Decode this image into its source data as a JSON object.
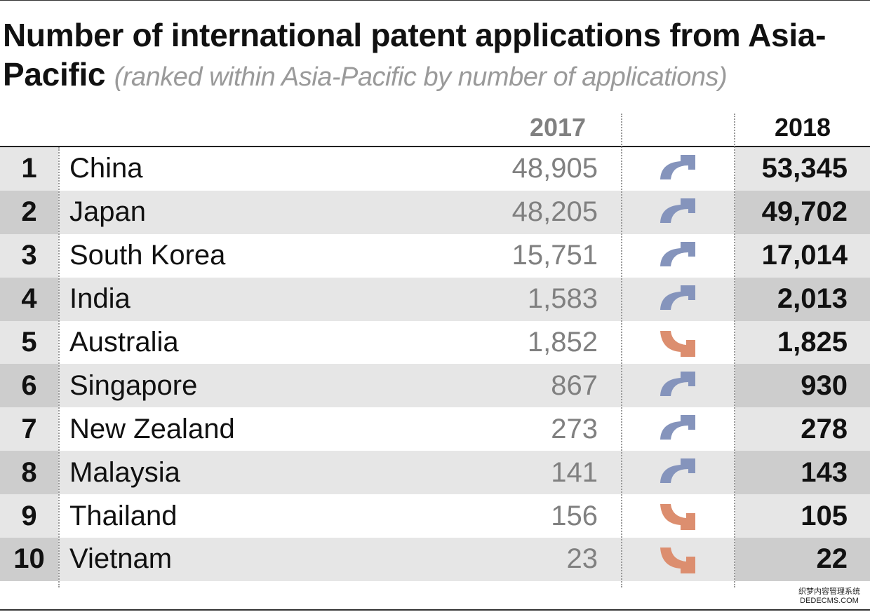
{
  "chart_data": {
    "type": "table",
    "title": "Number of international patent applications from Asia-Pacific",
    "subtitle": "(ranked within Asia-Pacific by number of applications)",
    "columns": [
      "2017",
      "2018"
    ],
    "rows": [
      {
        "rank": "1",
        "country": "China",
        "y2017": "48,905",
        "y2018": "53,345",
        "trend": "up"
      },
      {
        "rank": "2",
        "country": "Japan",
        "y2017": "48,205",
        "y2018": "49,702",
        "trend": "up"
      },
      {
        "rank": "3",
        "country": "South Korea",
        "y2017": "15,751",
        "y2018": "17,014",
        "trend": "up"
      },
      {
        "rank": "4",
        "country": "India",
        "y2017": "1,583",
        "y2018": "2,013",
        "trend": "up"
      },
      {
        "rank": "5",
        "country": "Australia",
        "y2017": "1,852",
        "y2018": "1,825",
        "trend": "down"
      },
      {
        "rank": "6",
        "country": "Singapore",
        "y2017": "867",
        "y2018": "930",
        "trend": "up"
      },
      {
        "rank": "7",
        "country": "New Zealand",
        "y2017": "273",
        "y2018": "278",
        "trend": "up"
      },
      {
        "rank": "8",
        "country": "Malaysia",
        "y2017": "141",
        "y2018": "143",
        "trend": "up"
      },
      {
        "rank": "9",
        "country": "Thailand",
        "y2017": "156",
        "y2018": "105",
        "trend": "down"
      },
      {
        "rank": "10",
        "country": "Vietnam",
        "y2017": "23",
        "y2018": "22",
        "trend": "down"
      }
    ]
  },
  "colors": {
    "up_arrow": "#8594bc",
    "down_arrow": "#dc8e6f",
    "row_alt": "#e6e6e6",
    "row_alt_dark": "#cdcdcd"
  },
  "icons": {
    "up": "arrow-curve-up-right-icon",
    "down": "arrow-curve-down-right-icon"
  },
  "watermark": {
    "line1": "织梦内容管理系统",
    "line2": "DEDECMS.COM"
  }
}
